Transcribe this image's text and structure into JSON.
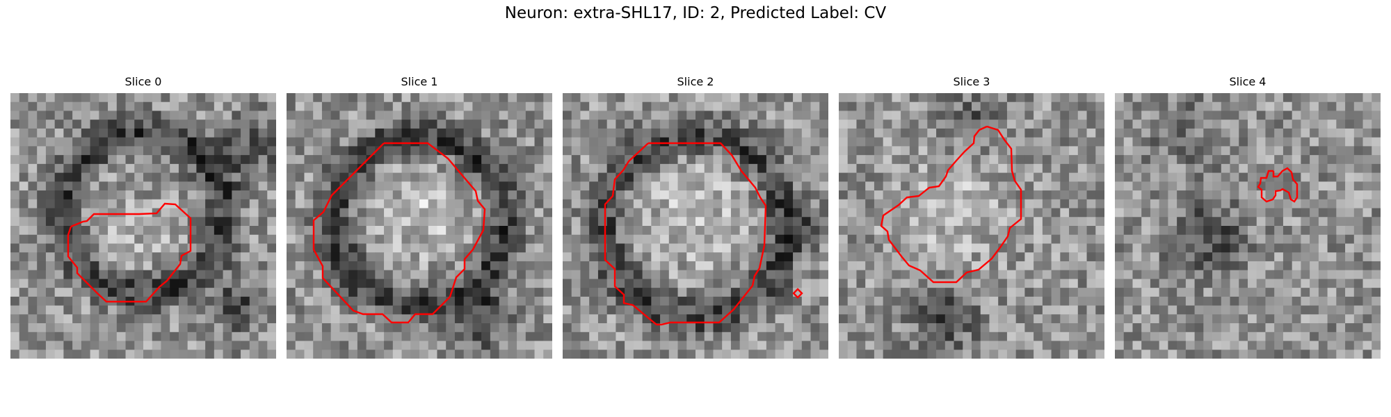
{
  "figure": {
    "title": "Neuron: extra-SHL17, ID: 2, Predicted Label: CV"
  },
  "colors": {
    "contour": "#ff0000",
    "background": "#ffffff"
  },
  "panels": [
    {
      "title": "Slice 0"
    },
    {
      "title": "Slice 1"
    },
    {
      "title": "Slice 2"
    },
    {
      "title": "Slice 3"
    },
    {
      "title": "Slice 4"
    }
  ]
}
